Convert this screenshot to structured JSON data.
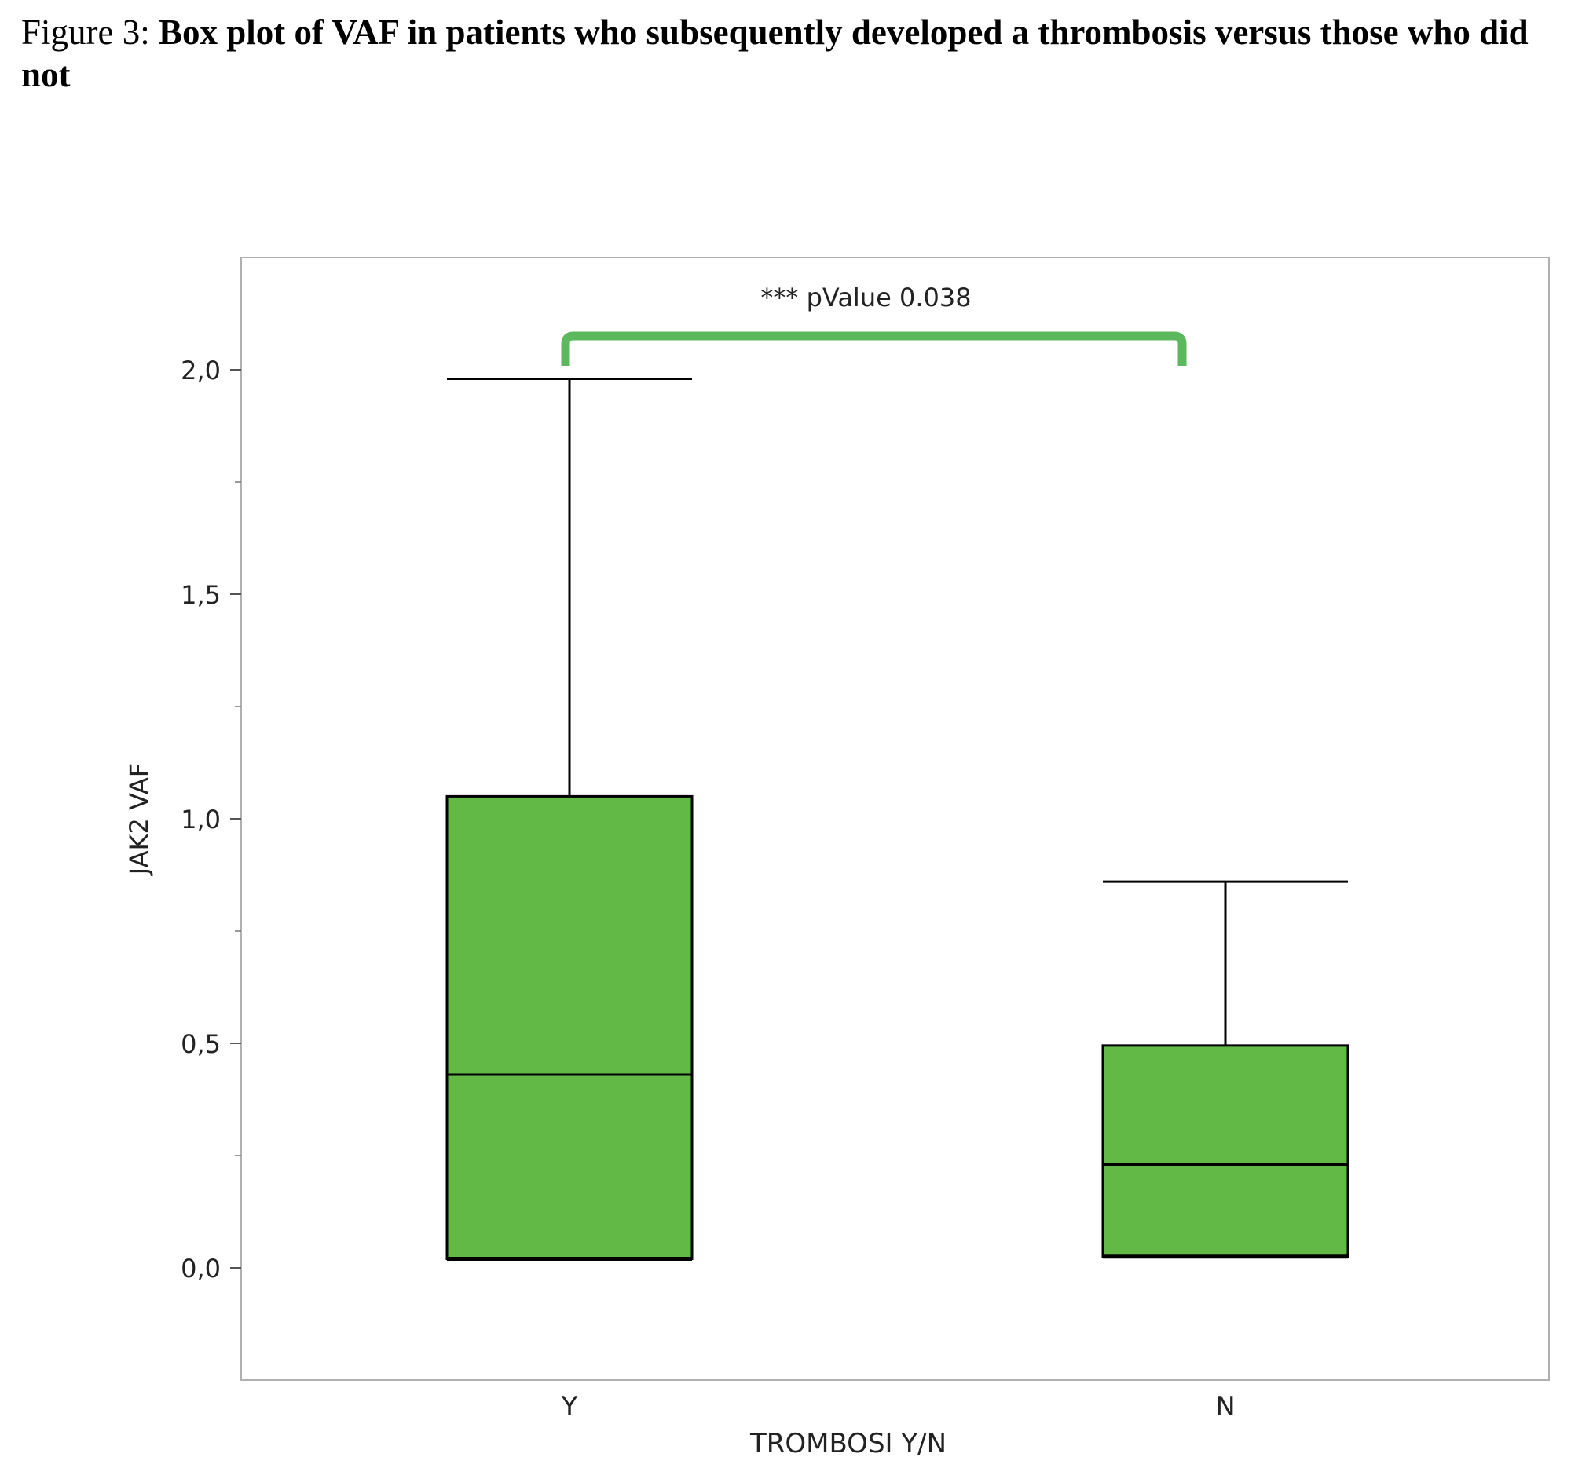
{
  "caption": {
    "lead": "Figure 3: ",
    "title": "Box plot of VAF in patients who subsequently developed a thrombosis versus those who did not"
  },
  "chart_data": {
    "type": "boxplot",
    "xlabel": "TROMBOSI Y/N",
    "ylabel": "JAK2 VAF",
    "ylim": [
      -0.25,
      2.25
    ],
    "yticks": [
      0.0,
      0.5,
      1.0,
      1.5,
      2.0
    ],
    "ytick_labels": [
      "0,0",
      "0,5",
      "1,0",
      "1,5",
      "2,0"
    ],
    "categories": [
      "Y",
      "N"
    ],
    "boxes": [
      {
        "category": "Y",
        "min": 0.02,
        "q1": 0.02,
        "median": 0.43,
        "q3": 1.05,
        "max": 1.98
      },
      {
        "category": "N",
        "min": 0.025,
        "q1": 0.025,
        "median": 0.23,
        "q3": 0.495,
        "max": 0.86
      }
    ],
    "annotation": {
      "text": "*** pValue 0.038",
      "from": "Y",
      "to": "N",
      "value": 2.07
    },
    "colors": {
      "box_fill": "#62b946",
      "bracket": "#5cb85c",
      "frame": "#b0b0b0",
      "line": "#000000"
    }
  }
}
